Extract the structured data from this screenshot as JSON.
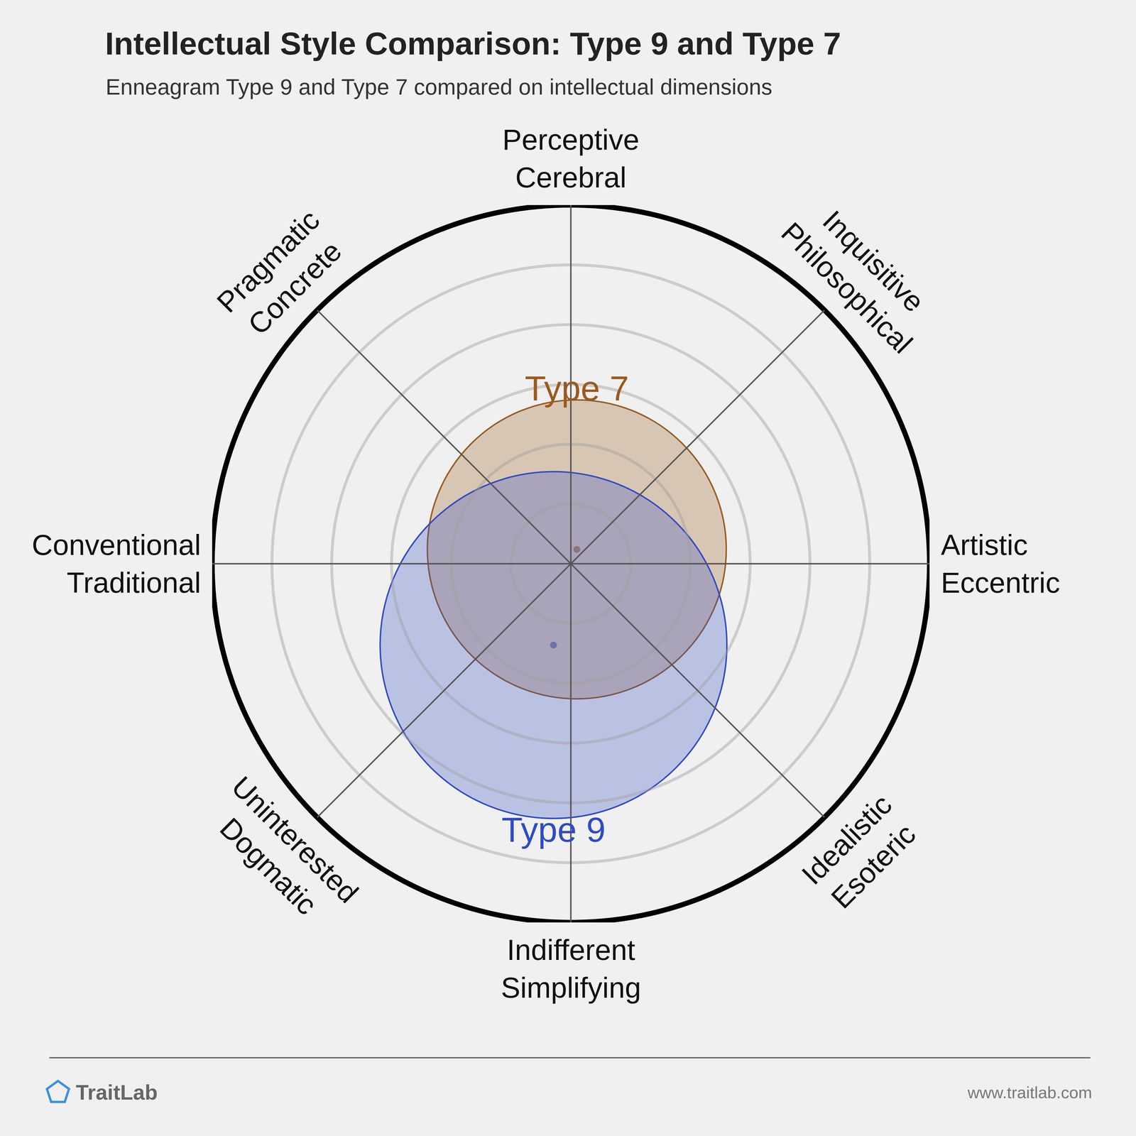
{
  "chart_data": {
    "type": "circle_map",
    "title": "Intellectual Style Comparison: Type 9 and Type 7",
    "subtitle": "Enneagram Type 9 and Type 7 compared on intellectual dimensions",
    "dimensions": [
      [
        "Perceptive",
        "Cerebral"
      ],
      [
        "Inquisitive",
        "Philosophical"
      ],
      [
        "Artistic",
        "Eccentric"
      ],
      [
        "Idealistic",
        "Esoteric"
      ],
      [
        "Indifferent",
        "Simplifying"
      ],
      [
        "Uninterested",
        "Dogmatic"
      ],
      [
        "Conventional",
        "Traditional"
      ],
      [
        "Pragmatic",
        "Concrete"
      ]
    ],
    "series": [
      {
        "name": "Type 7",
        "color": "#9a5a1e",
        "x": 0.1,
        "y": 0.24,
        "radius": 2.5
      },
      {
        "name": "Type 9",
        "color": "#2f4bc4",
        "x": -0.29,
        "y": -1.36,
        "radius": 2.9
      }
    ],
    "xlim": [
      -6,
      6
    ],
    "ylim": [
      -6,
      6
    ],
    "rticks": [
      1,
      2,
      3,
      4,
      5,
      6
    ],
    "tick_labels": false,
    "grid": true,
    "source": "TraitLab",
    "url": "www.traitlab.com"
  }
}
